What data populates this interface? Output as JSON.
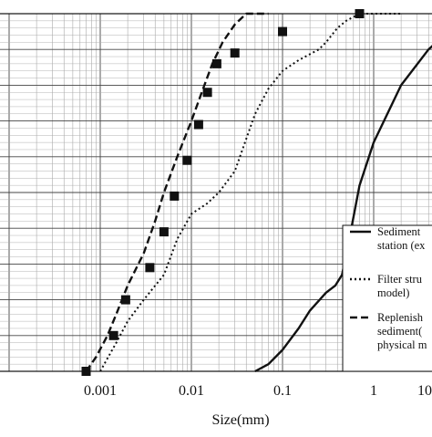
{
  "chart_data": {
    "type": "line",
    "xscale": "log",
    "xlim": [
      0.0005,
      15
    ],
    "ylim": [
      0,
      100
    ],
    "grid": true,
    "xlabel": "Size(mm)",
    "ylabel": "",
    "title": "",
    "x_ticks": [
      "0.001",
      "0.01",
      "0.1",
      "1",
      "10"
    ],
    "legend_placement": "bottom-right",
    "series": [
      {
        "legend_lines": [
          "Sediment",
          "station (ex"
        ],
        "style": "solid",
        "color": "#111111",
        "points": [
          [
            0.05,
            0
          ],
          [
            0.07,
            2
          ],
          [
            0.1,
            6
          ],
          [
            0.15,
            12
          ],
          [
            0.2,
            17
          ],
          [
            0.3,
            22
          ],
          [
            0.38,
            24
          ],
          [
            0.45,
            27
          ],
          [
            0.55,
            38
          ],
          [
            0.7,
            52
          ],
          [
            1,
            64
          ],
          [
            2,
            80
          ],
          [
            4,
            90
          ],
          [
            8,
            97
          ],
          [
            15,
            100
          ]
        ]
      },
      {
        "legend_lines": [
          "Filter stru",
          "model)"
        ],
        "style": "dotted",
        "color": "#111111",
        "points": [
          [
            0.001,
            0
          ],
          [
            0.0015,
            8
          ],
          [
            0.002,
            14
          ],
          [
            0.003,
            20
          ],
          [
            0.005,
            27
          ],
          [
            0.007,
            37
          ],
          [
            0.01,
            44
          ],
          [
            0.015,
            47
          ],
          [
            0.02,
            50
          ],
          [
            0.03,
            56
          ],
          [
            0.04,
            65
          ],
          [
            0.05,
            72
          ],
          [
            0.07,
            79
          ],
          [
            0.1,
            84
          ],
          [
            0.15,
            87
          ],
          [
            0.25,
            90
          ],
          [
            0.3,
            92
          ],
          [
            0.4,
            96
          ],
          [
            0.5,
            98
          ],
          [
            0.7,
            100
          ],
          [
            2,
            100
          ]
        ]
      },
      {
        "legend_lines": [
          "Replenish",
          "sediment(",
          "physical m"
        ],
        "style": "dashed",
        "color": "#111111",
        "points": [
          [
            0.0007,
            0
          ],
          [
            0.0009,
            4
          ],
          [
            0.0012,
            10
          ],
          [
            0.0015,
            16
          ],
          [
            0.002,
            24
          ],
          [
            0.003,
            33
          ],
          [
            0.004,
            42
          ],
          [
            0.005,
            50
          ],
          [
            0.007,
            60
          ],
          [
            0.01,
            70
          ],
          [
            0.013,
            78
          ],
          [
            0.017,
            86
          ],
          [
            0.022,
            92
          ],
          [
            0.03,
            97
          ],
          [
            0.04,
            100
          ],
          [
            0.07,
            100
          ]
        ]
      },
      {
        "legend_lines": [],
        "style": "square-markers",
        "color": "#111111",
        "points": [
          [
            0.0007,
            0
          ],
          [
            0.0014,
            10
          ],
          [
            0.0019,
            20
          ],
          [
            0.0035,
            29
          ],
          [
            0.005,
            39
          ],
          [
            0.0065,
            49
          ],
          [
            0.009,
            59
          ],
          [
            0.012,
            69
          ],
          [
            0.015,
            78
          ],
          [
            0.019,
            86
          ],
          [
            0.03,
            89
          ],
          [
            0.1,
            95
          ],
          [
            0.7,
            100
          ]
        ]
      }
    ]
  }
}
